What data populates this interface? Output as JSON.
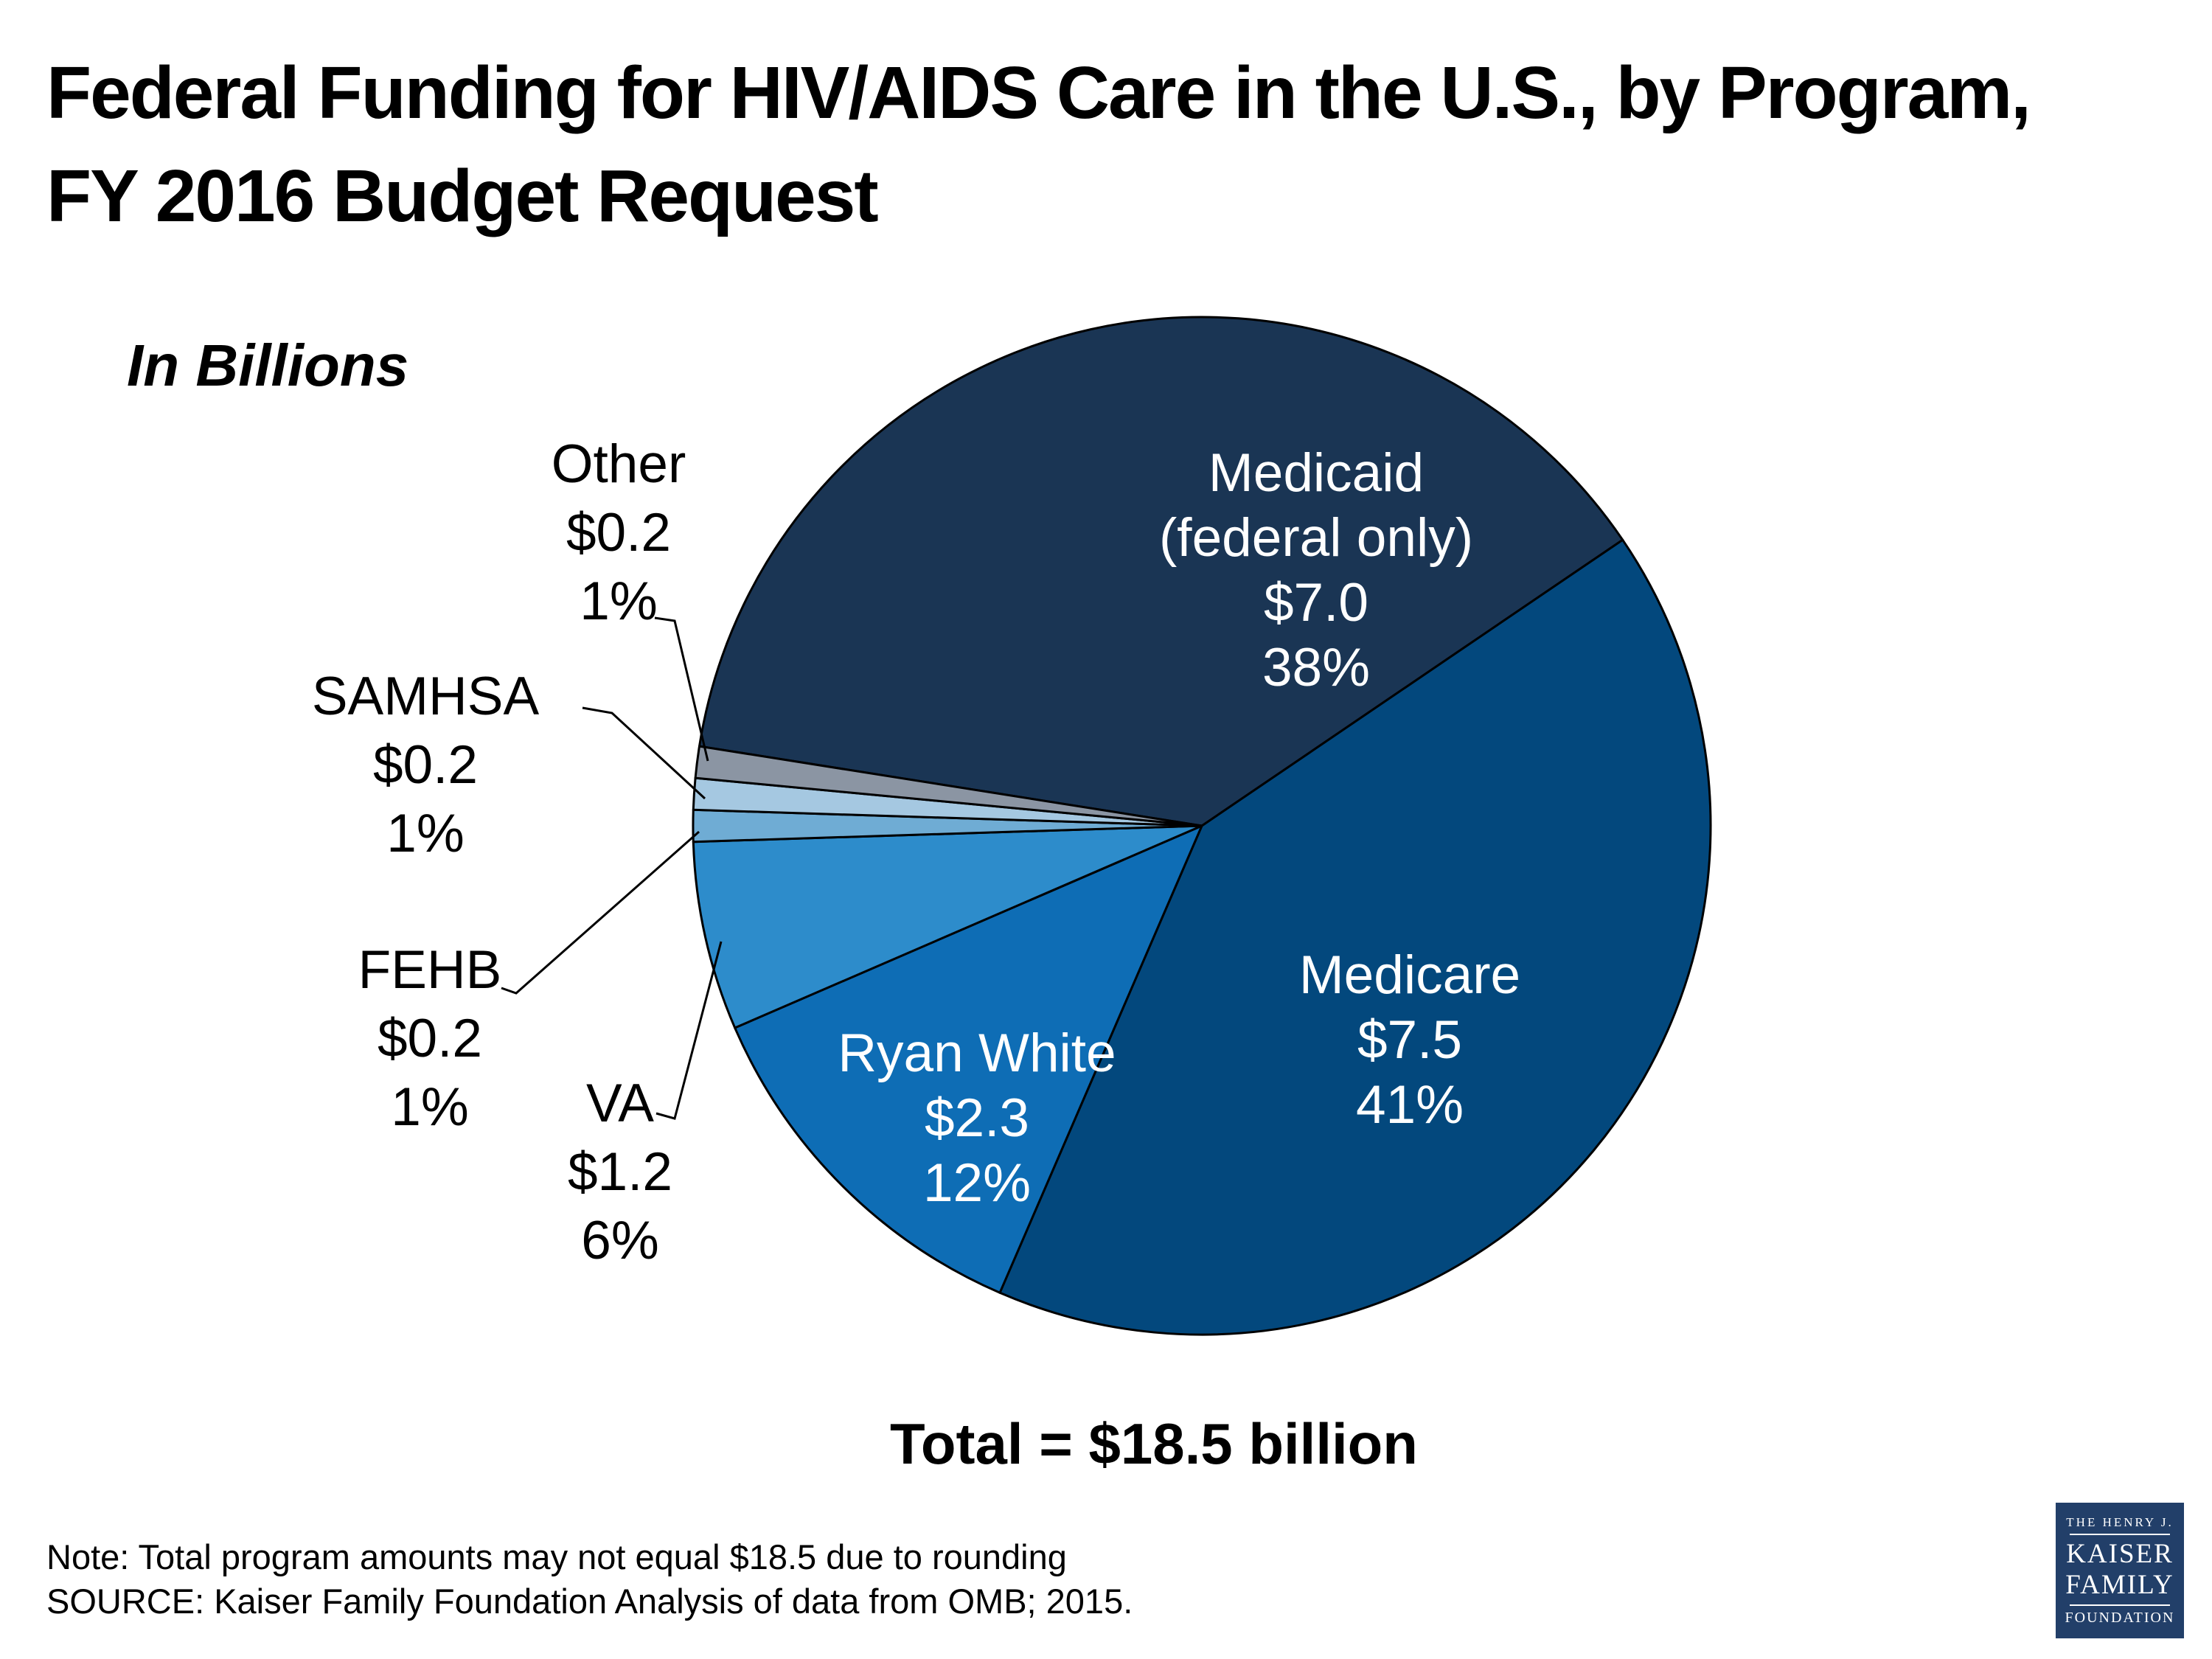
{
  "page": {
    "background": "#FFFFFF"
  },
  "header": {
    "title_line1": "Federal Funding for HIV/AIDS Care in the U.S., by Program,",
    "title_line2": "FY 2016 Budget Request"
  },
  "chart_data": {
    "type": "pie",
    "title": "Federal Funding for HIV/AIDS Care in the U.S., by Program, FY 2016 Budget Request",
    "units_label": "In Billions",
    "total_label": "Total = $18.5 billion",
    "total_billions": 18.5,
    "start_angle_deg": 279,
    "direction": "clockwise",
    "legend_position": "none",
    "slices": [
      {
        "label": "Medicaid (federal only)",
        "value_billions": 7.0,
        "pct": 38,
        "color": "#1A3554",
        "label_placement": "inside",
        "label_color": "#FFFFFF",
        "label_lines": [
          "Medicaid",
          "(federal only)",
          "$7.0",
          "38%"
        ]
      },
      {
        "label": "Medicare",
        "value_billions": 7.5,
        "pct": 41,
        "color": "#03487D",
        "label_placement": "inside",
        "label_color": "#FFFFFF",
        "label_lines": [
          "Medicare",
          "$7.5",
          "41%"
        ]
      },
      {
        "label": "Ryan White",
        "value_billions": 2.3,
        "pct": 12,
        "color": "#0E6DB5",
        "label_placement": "inside",
        "label_color": "#FFFFFF",
        "label_lines": [
          "Ryan White",
          "$2.3",
          "12%"
        ]
      },
      {
        "label": "VA",
        "value_billions": 1.2,
        "pct": 6,
        "color": "#2D8CCB",
        "label_placement": "outside",
        "label_color": "#000000",
        "label_lines": [
          "VA",
          "$1.2",
          "6%"
        ]
      },
      {
        "label": "FEHB",
        "value_billions": 0.2,
        "pct": 1,
        "color": "#6FACD4",
        "label_placement": "outside",
        "label_color": "#000000",
        "label_lines": [
          "FEHB",
          "$0.2",
          "1%"
        ]
      },
      {
        "label": "SAMHSA",
        "value_billions": 0.2,
        "pct": 1,
        "color": "#A5C8E1",
        "label_placement": "outside",
        "label_color": "#000000",
        "label_lines": [
          "SAMHSA",
          "$0.2",
          "1%"
        ]
      },
      {
        "label": "Other",
        "value_billions": 0.2,
        "pct": 1,
        "color": "#8B95A3",
        "label_placement": "outside",
        "label_color": "#000000",
        "label_lines": [
          "Other",
          "$0.2",
          "1%"
        ]
      }
    ]
  },
  "footer": {
    "note": "Note: Total program amounts may not equal $18.5 due to rounding",
    "source": "SOURCE: Kaiser Family Foundation Analysis of data from OMB; 2015."
  },
  "logo": {
    "background": "#223F69",
    "line1": "THE HENRY J.",
    "line2": "KAISER",
    "line3": "FAMILY",
    "line4": "FOUNDATION"
  }
}
